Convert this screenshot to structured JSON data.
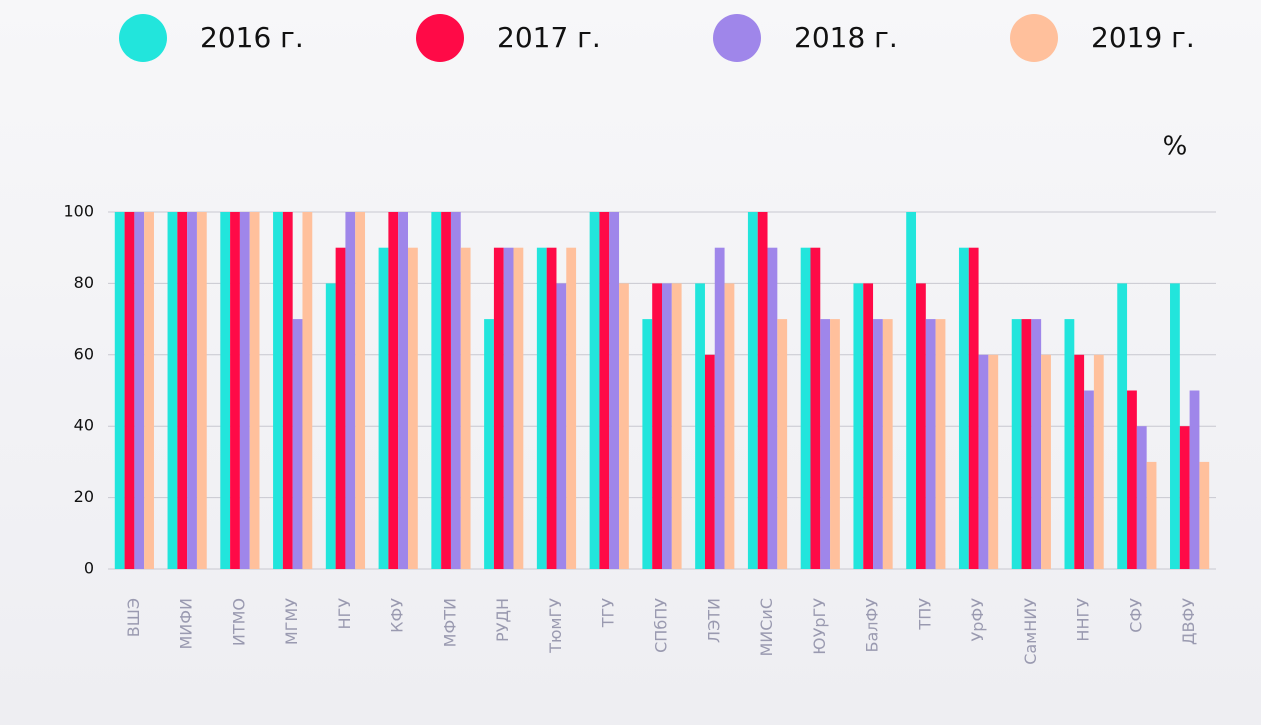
{
  "chart_data": {
    "type": "bar",
    "ylabel": "%",
    "categories": [
      "ВШЭ",
      "МИФИ",
      "ИТМО",
      "МГМУ",
      "НГУ",
      "КФУ",
      "МФТИ",
      "РУДН",
      "ТюмГУ",
      "ТГУ",
      "СПбПУ",
      "ЛЭТИ",
      "МИСиС",
      "ЮУрГУ",
      "БалФУ",
      "ТПУ",
      "УрФУ",
      "СамНИУ",
      "ННГУ",
      "СФУ",
      "ДВФУ"
    ],
    "series": [
      {
        "name": "2016 г.",
        "color": "#22e5dc",
        "values": [
          100,
          100,
          100,
          100,
          80,
          90,
          100,
          70,
          90,
          100,
          70,
          80,
          100,
          90,
          80,
          100,
          90,
          70,
          70,
          80,
          80
        ]
      },
      {
        "name": "2017 г.",
        "color": "#ff0a47",
        "values": [
          100,
          100,
          100,
          100,
          90,
          100,
          100,
          90,
          90,
          100,
          80,
          60,
          100,
          90,
          80,
          80,
          90,
          70,
          60,
          50,
          40
        ]
      },
      {
        "name": "2018 г.",
        "color": "#9f86ea",
        "values": [
          100,
          100,
          100,
          70,
          100,
          100,
          100,
          90,
          80,
          100,
          80,
          90,
          90,
          70,
          70,
          70,
          60,
          70,
          50,
          40,
          50
        ]
      },
      {
        "name": "2019 г.",
        "color": "#ffc09c",
        "values": [
          100,
          100,
          100,
          100,
          100,
          90,
          90,
          90,
          90,
          80,
          80,
          80,
          70,
          70,
          70,
          70,
          60,
          60,
          60,
          30,
          30
        ]
      }
    ],
    "ylim": [
      0,
      100
    ],
    "yticks": [
      0,
      20,
      40,
      60,
      80,
      100
    ],
    "grid": true
  }
}
